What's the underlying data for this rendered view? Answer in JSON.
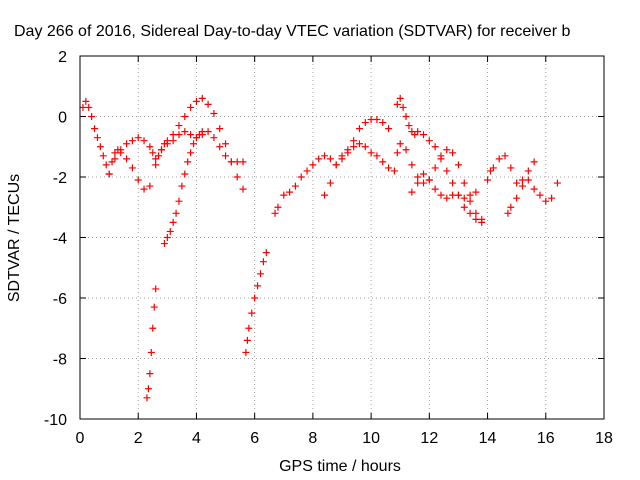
{
  "chart_data": {
    "type": "scatter",
    "title": "Day 266 of 2016, Sidereal Day-to-day VTEC variation (SDTVAR) for receiver b",
    "xlabel": "GPS time / hours",
    "ylabel": "SDTVAR / TECUs",
    "xlim": [
      0,
      18
    ],
    "ylim": [
      -10,
      2
    ],
    "xticks": [
      "0",
      "2",
      "4",
      "6",
      "8",
      "10",
      "12",
      "14",
      "16",
      "18"
    ],
    "yticks": [
      "2",
      "0",
      "-2",
      "-4",
      "-6",
      "-8",
      "-10"
    ],
    "grid": true,
    "legend": "none",
    "marker": "plus",
    "color": "#ff0000",
    "series": [
      {
        "x": [
          0.1,
          0.2,
          0.3,
          0.4,
          0.5,
          0.6,
          0.7,
          0.8,
          0.9,
          1.0,
          1.1,
          1.2,
          1.3,
          1.4,
          1.6,
          1.8,
          2.0,
          2.2,
          2.4,
          2.5,
          2.6,
          2.7,
          2.8,
          2.9,
          3.0,
          3.2,
          3.4,
          3.6,
          3.8,
          4.0,
          4.2,
          4.4,
          4.6,
          4.8,
          5.0,
          5.2,
          5.4,
          5.6
        ],
        "y": [
          0.3,
          0.5,
          0.3,
          0.0,
          -0.4,
          -0.7,
          -1.0,
          -1.3,
          -1.6,
          -1.9,
          -1.5,
          -1.2,
          -1.1,
          -1.1,
          -0.9,
          -0.8,
          -0.7,
          -0.8,
          -1.0,
          -1.2,
          -1.4,
          -1.3,
          -1.1,
          -0.9,
          -0.8,
          -0.6,
          -0.3,
          0.0,
          0.3,
          0.5,
          0.6,
          0.4,
          0.1,
          -0.4,
          -0.9,
          -1.5,
          -2.0,
          -2.4
        ]
      },
      {
        "x": [
          1.0,
          1.2,
          1.4,
          1.6,
          1.8,
          2.0,
          2.2,
          2.4,
          2.6,
          2.8,
          3.0,
          3.2,
          3.4,
          3.6,
          3.8,
          4.0,
          4.2,
          4.4,
          4.6,
          4.8,
          5.0,
          5.2,
          5.4,
          5.6
        ],
        "y": [
          -1.9,
          -1.4,
          -1.2,
          -1.4,
          -1.7,
          -2.1,
          -2.4,
          -2.3,
          -1.6,
          -1.1,
          -0.9,
          -0.8,
          -0.6,
          -0.5,
          -0.6,
          -0.7,
          -0.6,
          -0.5,
          -0.7,
          -1.0,
          -1.3,
          -1.5,
          -1.5,
          -1.5
        ]
      },
      {
        "x": [
          2.3,
          2.35,
          2.4,
          2.45,
          2.5,
          2.55,
          2.6
        ],
        "y": [
          -9.3,
          -9.0,
          -8.5,
          -7.8,
          -7.0,
          -6.3,
          -5.7
        ]
      },
      {
        "x": [
          2.9,
          3.0,
          3.1,
          3.2,
          3.3,
          3.4,
          3.5,
          3.6,
          3.7,
          3.8,
          3.9,
          4.0,
          4.1,
          4.2
        ],
        "y": [
          -4.2,
          -4.0,
          -3.8,
          -3.5,
          -3.2,
          -2.8,
          -2.3,
          -1.9,
          -1.5,
          -1.2,
          -0.9,
          -0.7,
          -0.6,
          -0.5
        ]
      },
      {
        "x": [
          5.7,
          5.75,
          5.8,
          5.9,
          6.0,
          6.1,
          6.2,
          6.3,
          6.4
        ],
        "y": [
          -7.8,
          -7.4,
          -7.0,
          -6.5,
          -6.0,
          -5.6,
          -5.2,
          -4.8,
          -4.5
        ]
      },
      {
        "x": [
          6.7,
          6.8,
          7.0,
          7.2,
          7.4,
          7.6,
          7.8,
          8.0,
          8.2,
          8.4,
          8.6,
          8.8,
          9.0,
          9.2,
          9.4,
          9.6,
          9.8,
          10.0,
          10.2,
          10.4,
          10.6,
          10.8
        ],
        "y": [
          -3.2,
          -3.0,
          -2.6,
          -2.5,
          -2.3,
          -2.0,
          -1.8,
          -1.6,
          -1.4,
          -1.3,
          -1.4,
          -1.6,
          -1.4,
          -1.2,
          -1.0,
          -0.9,
          -1.0,
          -1.2,
          -1.3,
          -1.5,
          -1.7,
          -1.8
        ]
      },
      {
        "x": [
          8.4,
          8.6,
          8.8,
          9.0,
          9.2,
          9.4,
          9.6,
          9.8,
          10.0,
          10.2,
          10.4,
          10.6
        ],
        "y": [
          -2.6,
          -2.2,
          -1.6,
          -1.3,
          -1.1,
          -0.8,
          -0.4,
          -0.2,
          -0.1,
          -0.1,
          -0.2,
          -0.4
        ]
      },
      {
        "x": [
          10.9,
          11.0,
          11.1,
          11.2,
          11.3,
          11.4,
          11.5,
          11.6,
          11.8,
          12.0,
          12.2,
          12.4,
          12.6,
          12.8,
          13.0,
          13.2,
          13.4,
          13.6,
          13.8
        ],
        "y": [
          0.4,
          0.6,
          0.3,
          0.0,
          -0.3,
          -0.5,
          -0.6,
          -0.5,
          -0.6,
          -0.8,
          -1.0,
          -1.4,
          -1.8,
          -2.2,
          -2.6,
          -3.0,
          -3.2,
          -3.4,
          -3.5
        ]
      },
      {
        "x": [
          10.9,
          11.0,
          11.2,
          11.4,
          11.6,
          11.8,
          12.0,
          12.2,
          12.4,
          12.6,
          12.8,
          13.0,
          13.2,
          13.4,
          13.6,
          13.8
        ],
        "y": [
          -1.2,
          -0.9,
          -1.1,
          -1.6,
          -2.0,
          -2.2,
          -2.1,
          -1.7,
          -1.3,
          -1.1,
          -1.2,
          -1.6,
          -2.2,
          -2.8,
          -3.2,
          -3.4
        ]
      },
      {
        "x": [
          11.4,
          11.6,
          11.8,
          12.0,
          12.2,
          12.4,
          12.6,
          12.8,
          13.0,
          13.2,
          13.4,
          13.6
        ],
        "y": [
          -2.5,
          -2.2,
          -1.9,
          -2.1,
          -2.4,
          -2.6,
          -2.7,
          -2.6,
          -2.6,
          -2.7,
          -2.6,
          -2.5
        ]
      },
      {
        "x": [
          14.0,
          14.1,
          14.2,
          14.4,
          14.6,
          14.8,
          15.0,
          15.2,
          15.4,
          15.6
        ],
        "y": [
          -2.1,
          -1.8,
          -1.7,
          -1.4,
          -1.3,
          -1.7,
          -2.2,
          -2.1,
          -1.8,
          -1.5
        ]
      },
      {
        "x": [
          14.7,
          14.8,
          15.0,
          15.2,
          15.4,
          15.6,
          15.8,
          16.0,
          16.2,
          16.4
        ],
        "y": [
          -3.2,
          -3.0,
          -2.7,
          -2.3,
          -2.1,
          -2.4,
          -2.6,
          -2.8,
          -2.7,
          -2.2
        ]
      }
    ]
  }
}
